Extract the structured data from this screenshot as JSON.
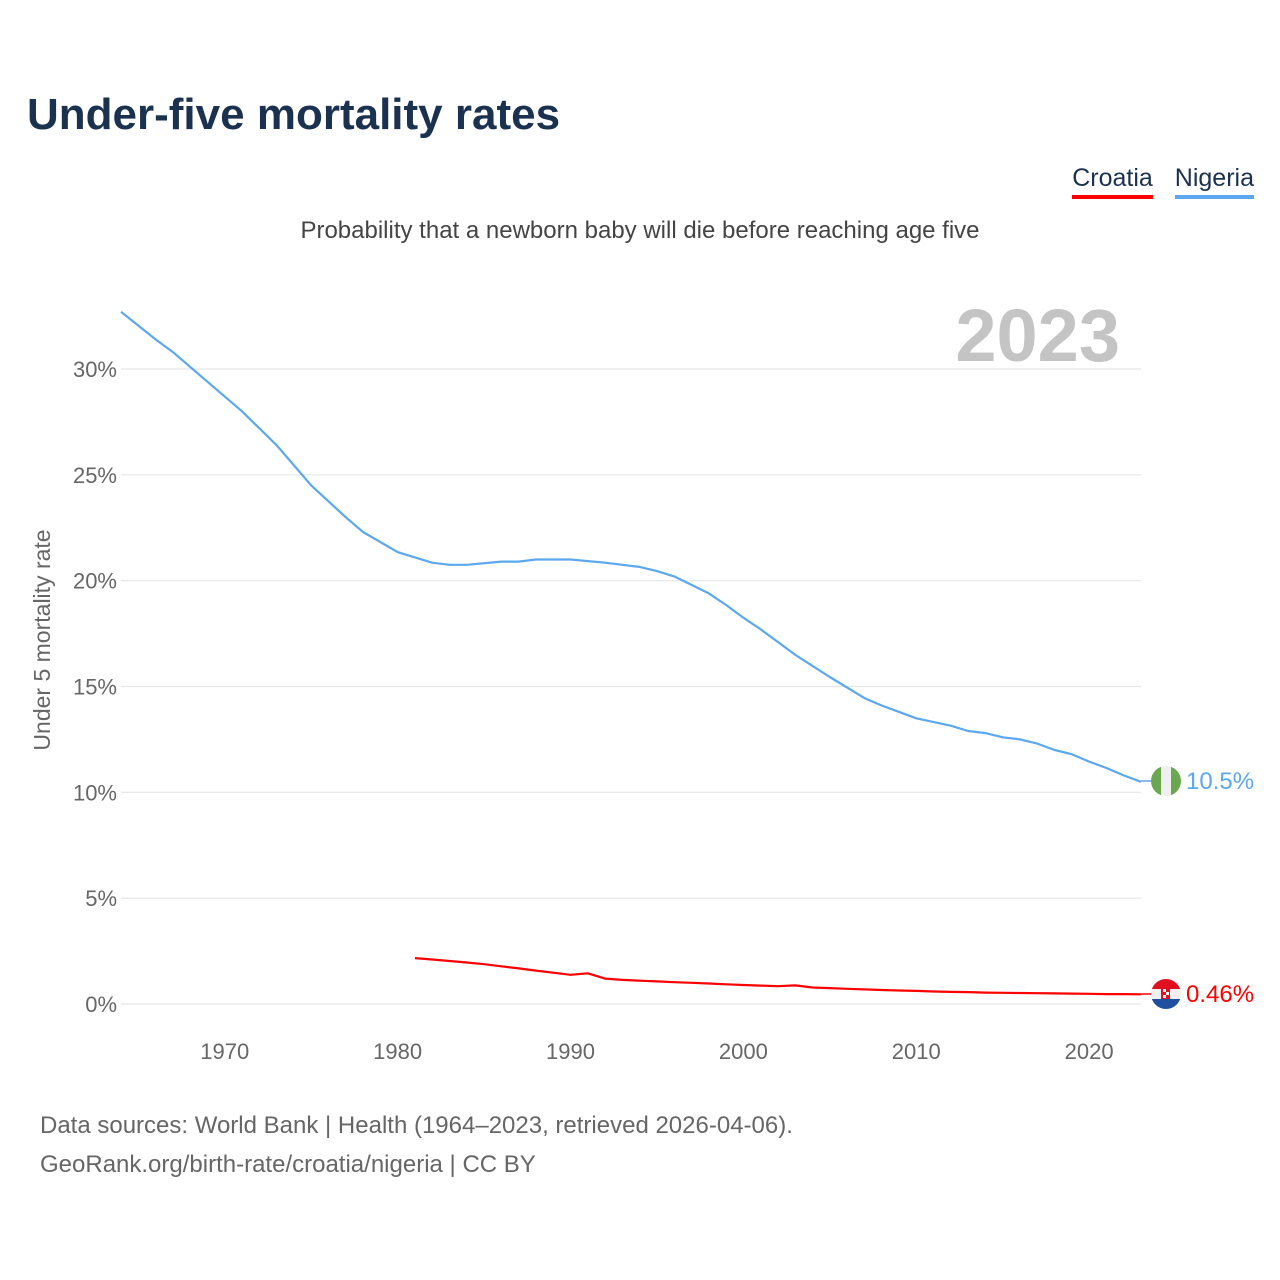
{
  "title": "Under-five mortality rates",
  "subtitle": "Probability that a newborn baby will die before reaching age five",
  "legend": [
    {
      "label": "Croatia",
      "color": "#ff0000"
    },
    {
      "label": "Nigeria",
      "color": "#5ba8ee"
    }
  ],
  "year_watermark": "2023",
  "footer": {
    "line1": "Data sources: World Bank | Health (1964–2023, retrieved 2026-04-06).",
    "line2": "GeoRank.org/birth-rate/croatia/nigeria | CC BY"
  },
  "chart_data": {
    "type": "line",
    "title": "Under-five mortality rates",
    "xlabel": "",
    "ylabel": "Under 5 mortality rate",
    "xlim": [
      1964,
      2023
    ],
    "ylim": [
      0,
      30
    ],
    "xticks": [
      1970,
      1980,
      1990,
      2000,
      2010,
      2020
    ],
    "yticks": [
      0,
      5,
      10,
      15,
      20,
      25,
      30
    ],
    "ytick_labels": [
      "0%",
      "5%",
      "10%",
      "15%",
      "20%",
      "25%",
      "30%"
    ],
    "grid": true,
    "legend_position": "top-right",
    "series": [
      {
        "name": "Nigeria",
        "color": "#5ba8ee",
        "end_label": "10.5%",
        "flag": "nigeria-flag",
        "x": [
          1964,
          1966,
          1967,
          1969,
          1971,
          1973,
          1975,
          1977,
          1978,
          1980,
          1981,
          1982,
          1983,
          1984,
          1986,
          1987,
          1988,
          1990,
          1992,
          1994,
          1995,
          1996,
          1998,
          1999,
          2000,
          2001,
          2002,
          2003,
          2005,
          2007,
          2008,
          2010,
          2012,
          2013,
          2014,
          2015,
          2016,
          2017,
          2018,
          2019,
          2020,
          2021,
          2022,
          2023
        ],
        "y": [
          32.7,
          31.4,
          30.8,
          29.4,
          28.0,
          26.4,
          24.5,
          23.0,
          22.3,
          21.35,
          21.1,
          20.85,
          20.75,
          20.75,
          20.9,
          20.9,
          21.0,
          21.0,
          20.85,
          20.65,
          20.45,
          20.2,
          19.4,
          18.85,
          18.25,
          17.7,
          17.1,
          16.5,
          15.45,
          14.45,
          14.1,
          13.5,
          13.15,
          12.9,
          12.8,
          12.6,
          12.5,
          12.3,
          12.0,
          11.8,
          11.45,
          11.15,
          10.8,
          10.5
        ]
      },
      {
        "name": "Croatia",
        "color": "#ff0000",
        "end_label": "0.46%",
        "flag": "croatia-flag",
        "x": [
          1981,
          1982,
          1983,
          1984,
          1985,
          1986,
          1987,
          1988,
          1989,
          1990,
          1991,
          1992,
          1993,
          1994,
          1995,
          1996,
          1997,
          1998,
          1999,
          2000,
          2001,
          2002,
          2003,
          2004,
          2005,
          2006,
          2007,
          2008,
          2009,
          2010,
          2011,
          2012,
          2013,
          2014,
          2015,
          2016,
          2017,
          2018,
          2019,
          2020,
          2021,
          2022,
          2023
        ],
        "y": [
          2.17,
          2.1,
          2.03,
          1.96,
          1.88,
          1.78,
          1.68,
          1.58,
          1.48,
          1.38,
          1.45,
          1.2,
          1.14,
          1.1,
          1.07,
          1.03,
          1.0,
          0.97,
          0.93,
          0.9,
          0.87,
          0.84,
          0.88,
          0.78,
          0.75,
          0.72,
          0.69,
          0.66,
          0.64,
          0.62,
          0.59,
          0.57,
          0.56,
          0.54,
          0.53,
          0.52,
          0.51,
          0.5,
          0.49,
          0.48,
          0.47,
          0.47,
          0.46
        ]
      }
    ]
  }
}
